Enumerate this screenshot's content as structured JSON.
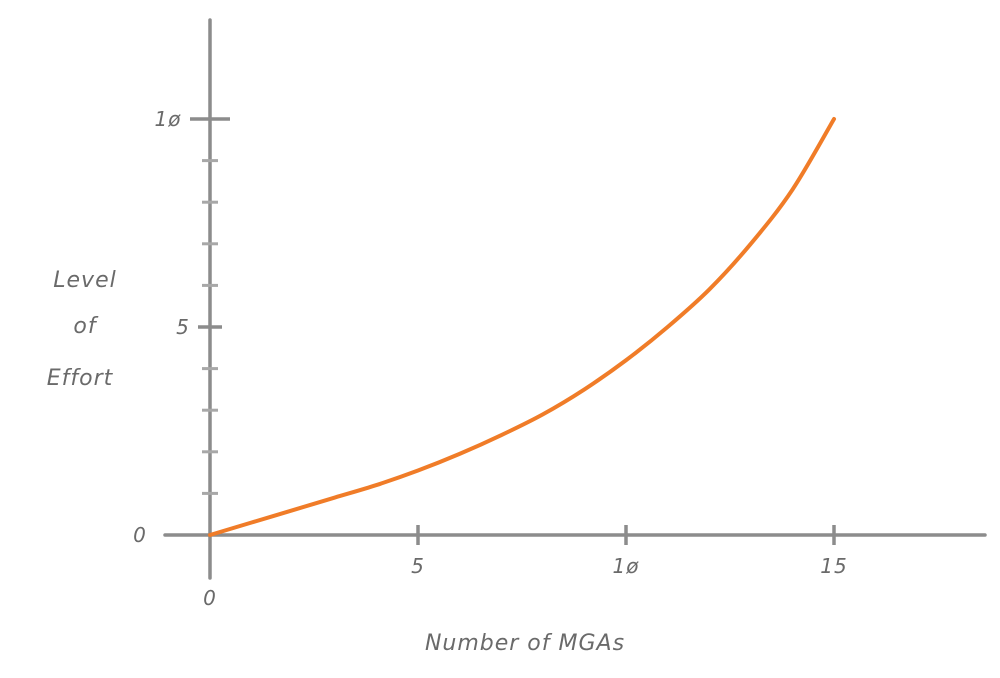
{
  "chart_data": {
    "type": "line",
    "title": "",
    "xlabel": "Number of MGAs",
    "ylabel_lines": [
      "Level",
      "of",
      "Effort"
    ],
    "xlim": [
      0,
      18.5
    ],
    "ylim": [
      0,
      10
    ],
    "x_ticks": [
      {
        "value": 5,
        "label": "5"
      },
      {
        "value": 10,
        "label": "1ø"
      },
      {
        "value": 15,
        "label": "15"
      }
    ],
    "y_ticks": [
      {
        "value": 0,
        "label": "0"
      },
      {
        "value": 5,
        "label": "5"
      },
      {
        "value": 10,
        "label": "1ø"
      }
    ],
    "y_minor_tick_step": 1,
    "origin_label": "0",
    "series": [
      {
        "color": "#f07c28",
        "x": [
          0,
          1,
          2,
          3,
          4,
          5,
          6,
          7,
          8,
          9,
          10,
          11,
          12,
          13,
          14,
          15
        ],
        "y": [
          0,
          0.3,
          0.6,
          0.9,
          1.2,
          1.55,
          1.95,
          2.4,
          2.9,
          3.5,
          4.2,
          5.0,
          5.9,
          7.0,
          8.3,
          10.0
        ]
      }
    ],
    "grid": false,
    "axis_color": "#8c8c8c"
  }
}
